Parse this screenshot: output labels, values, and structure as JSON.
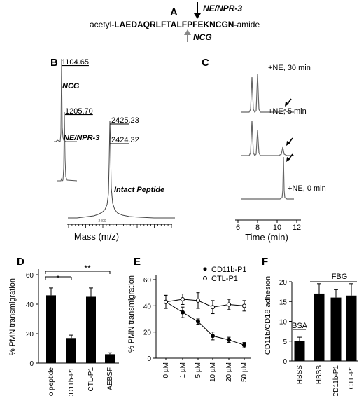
{
  "panel_a": {
    "letter": "A",
    "prefix": "acetyl-",
    "seq_left": "LAEDAQRLFT",
    "seq_right": "ALFPFEKNCGN",
    "suffix": "-amide",
    "cleavage_top": "NE/NPR-3",
    "cleavage_bottom": "NCG"
  },
  "panel_b": {
    "letter": "B",
    "xlabel": "Mass (m/z)",
    "tick": "2400",
    "spectra": [
      {
        "label": "NCG",
        "peak": "1104.65"
      },
      {
        "label": "NE/NPR-3",
        "peak": "1205.70"
      },
      {
        "label": "Intact Peptide",
        "peak_a": "2425.23",
        "peak_b": "2424.32"
      }
    ]
  },
  "panel_c": {
    "letter": "C",
    "xlabel": "Time (min)",
    "xticks": [
      "6",
      "8",
      "10",
      "12"
    ],
    "traces": [
      {
        "label": "+NE, 30 min"
      },
      {
        "label": "+NE, 5 min"
      },
      {
        "label": "+NE, 0 min"
      }
    ]
  },
  "chart_data": [
    {
      "panel": "D",
      "type": "bar",
      "ylabel": "% PMN transmigration",
      "ylim": [
        0,
        60
      ],
      "yticks": [
        "0",
        "20",
        "40",
        "60"
      ],
      "categories": [
        "No peptide",
        "CD11b-P1",
        "CTL-P1",
        "AEBSF"
      ],
      "values": [
        46,
        17,
        45,
        6
      ],
      "errors": [
        5,
        2,
        6,
        1
      ],
      "significance": [
        "*",
        "**"
      ]
    },
    {
      "panel": "E",
      "type": "line",
      "ylabel": "% PMN transmigration",
      "ylim": [
        0,
        60
      ],
      "yticks": [
        "0",
        "20",
        "40",
        "60"
      ],
      "categories": [
        "0 µM",
        "1 µM",
        "5 µM",
        "10 µM",
        "20 µM",
        "50 µM"
      ],
      "series": [
        {
          "name": "CD11b-P1",
          "marker": "filled",
          "values": [
            43,
            35,
            28,
            17,
            14,
            10
          ],
          "errors": [
            5,
            4,
            2,
            3,
            2,
            2
          ]
        },
        {
          "name": "CTL-P1",
          "marker": "open",
          "values": [
            43,
            45,
            44,
            39,
            41,
            40
          ],
          "errors": [
            5,
            4,
            6,
            5,
            4,
            4
          ]
        }
      ]
    },
    {
      "panel": "F",
      "type": "bar",
      "ylabel": "CD11b/CD18 adhesion",
      "ylim": [
        0,
        20
      ],
      "yticks": [
        "0",
        "5",
        "10",
        "15",
        "20"
      ],
      "categories": [
        "HBSS",
        "HBSS",
        "CD11b-P1",
        "CTL-P1"
      ],
      "values": [
        5,
        17,
        16,
        16.5
      ],
      "errors": [
        1,
        2.5,
        2,
        3
      ],
      "group_labels": [
        "BSA",
        "FBG"
      ]
    }
  ]
}
